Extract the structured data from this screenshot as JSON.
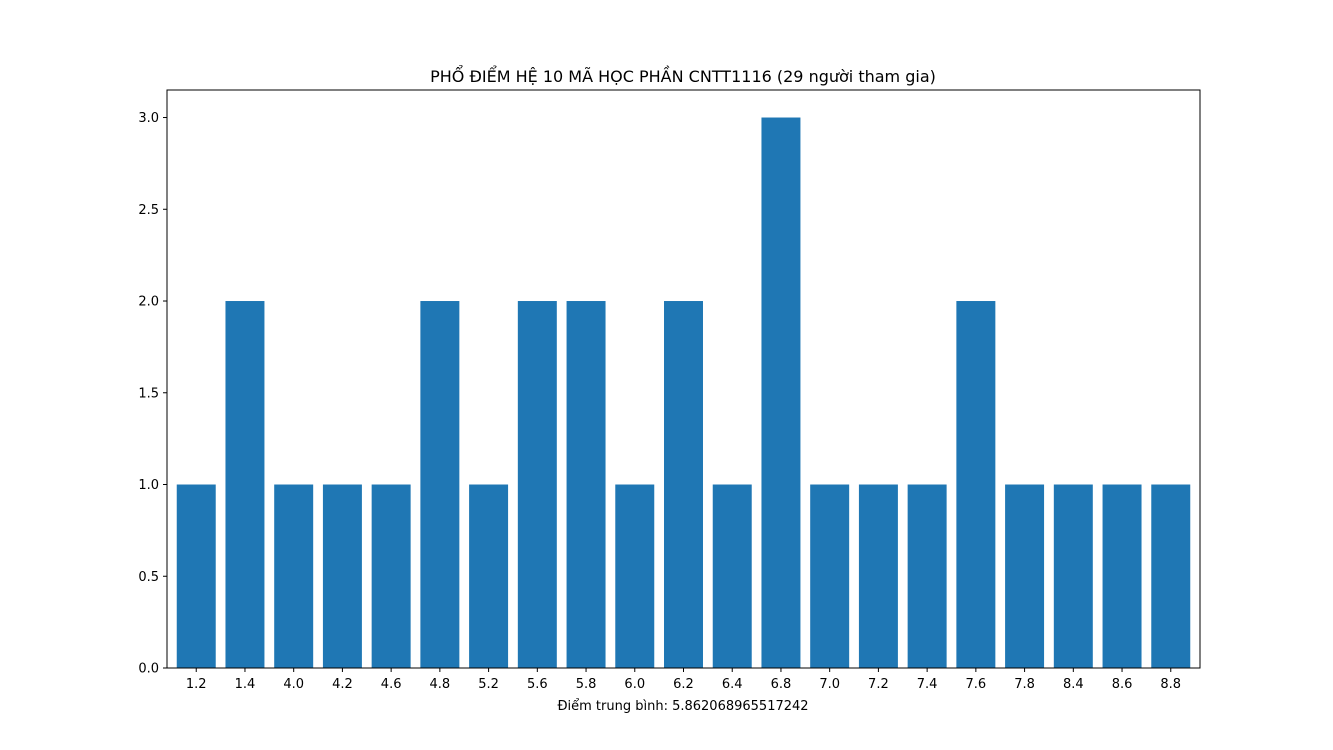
{
  "chart_data": {
    "type": "bar",
    "title": "PHỔ ĐIỂM HỆ 10 MÃ HỌC PHẦN CNTT1116 (29 người tham gia)",
    "xlabel": "Điểm trung bình: 5.862068965517242",
    "ylabel": "",
    "categories": [
      "1.2",
      "1.4",
      "4.0",
      "4.2",
      "4.6",
      "4.8",
      "5.2",
      "5.6",
      "5.8",
      "6.0",
      "6.2",
      "6.4",
      "6.8",
      "7.0",
      "7.2",
      "7.4",
      "7.6",
      "7.8",
      "8.4",
      "8.6",
      "8.8"
    ],
    "values": [
      1,
      2,
      1,
      1,
      1,
      2,
      1,
      2,
      2,
      1,
      2,
      1,
      3,
      1,
      1,
      1,
      2,
      1,
      1,
      1,
      1
    ],
    "ylim": [
      0,
      3.15
    ],
    "yticks": [
      "0.0",
      "0.5",
      "1.0",
      "1.5",
      "2.0",
      "2.5",
      "3.0"
    ],
    "bar_color": "#1f77b4",
    "grid": false,
    "legend": "none"
  }
}
